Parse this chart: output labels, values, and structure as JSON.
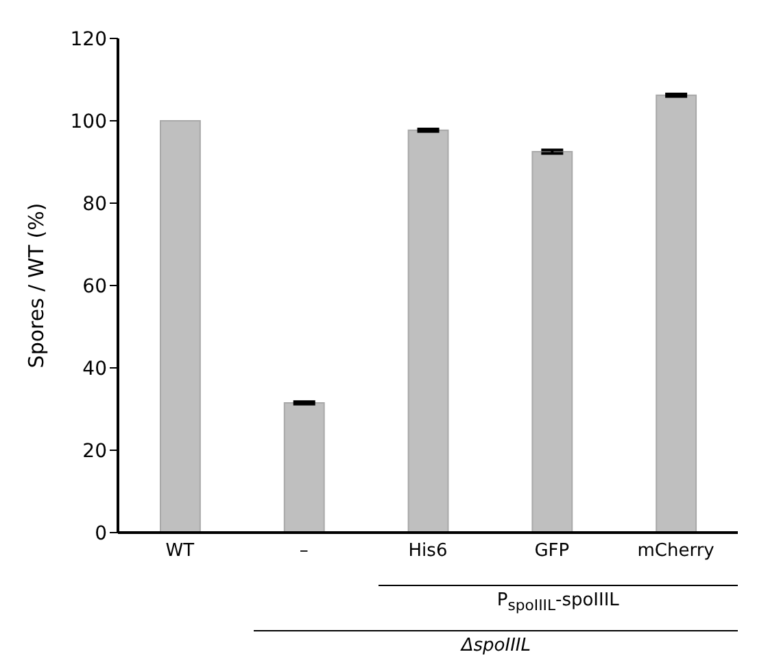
{
  "chart_data": {
    "type": "bar",
    "ylabel": "Spores / WT (%)",
    "categories": [
      "WT",
      "–",
      "His6",
      "GFP",
      "mCherry"
    ],
    "values": [
      100,
      31.5,
      97.7,
      92.5,
      106.2
    ],
    "errors": [
      null,
      0.3,
      0.3,
      0.4,
      0.3
    ],
    "color": "#bfbfbf",
    "ylim": [
      0,
      120
    ],
    "yticks": [
      0,
      20,
      40,
      60,
      80,
      100,
      120
    ],
    "annotations": [
      "P$_{spoIIIL}$-spoIIIL",
      "ΔspoIIIL"
    ]
  }
}
